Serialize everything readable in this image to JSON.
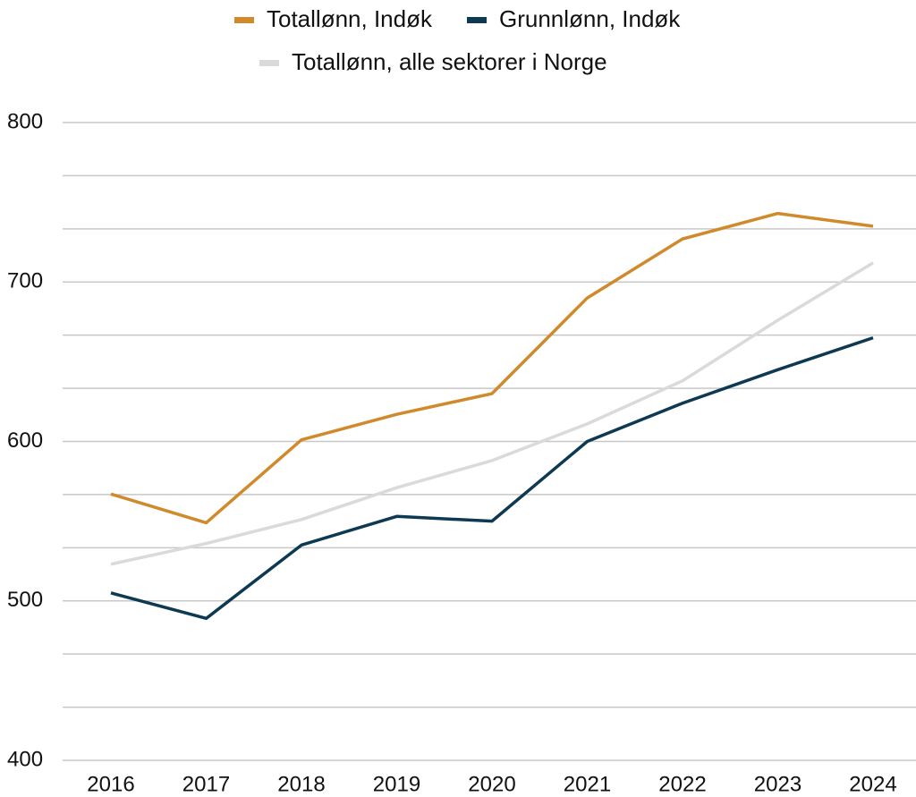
{
  "chart_data": {
    "type": "line",
    "categories": [
      "2016",
      "2017",
      "2018",
      "2019",
      "2020",
      "2021",
      "2022",
      "2023",
      "2024"
    ],
    "series": [
      {
        "name": "Totallønn, Indøk",
        "color": "#d08a2b",
        "values": [
          567,
          549,
          601,
          617,
          630,
          690,
          727,
          743,
          735
        ]
      },
      {
        "name": "Grunnlønn, Indøk",
        "color": "#0d3a52",
        "values": [
          505,
          489,
          535,
          553,
          550,
          600,
          624,
          645,
          665
        ]
      },
      {
        "name": "Totallønn, alle sektorer i Norge",
        "color": "#dadada",
        "values": [
          523,
          536,
          551,
          571,
          588,
          611,
          638,
          676,
          712
        ]
      }
    ],
    "ylim": [
      400,
      800
    ],
    "yticks": [
      400,
      500,
      600,
      700,
      800
    ],
    "minor_grid": [
      433.3,
      466.7,
      533.3,
      566.7,
      633.3,
      666.7,
      733.3,
      766.7
    ],
    "grid": true
  }
}
